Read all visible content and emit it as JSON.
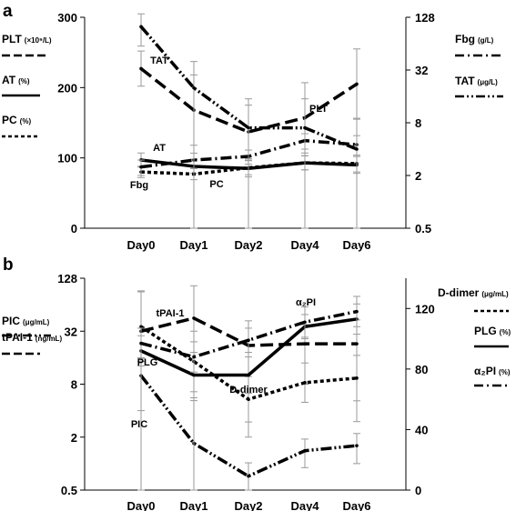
{
  "panels": [
    {
      "letter": "a",
      "left_axis": {
        "ticks": [
          "0",
          "100",
          "200",
          "300"
        ]
      },
      "right_axis": {
        "ticks": [
          "0.5",
          "2",
          "8",
          "32",
          "128"
        ]
      },
      "categories": [
        "Day0",
        "Day1",
        "Day2",
        "Day4",
        "Day6"
      ],
      "legend_left": [
        {
          "name": "PLT",
          "unit": "(×10⁹/L)"
        },
        {
          "name": "AT",
          "unit": "(%)"
        },
        {
          "name": "PC",
          "unit": "(%)"
        }
      ],
      "legend_right": [
        {
          "name": "Fbg",
          "unit": "(g/L)"
        },
        {
          "name": "TAT",
          "unit": "(μg/L)"
        }
      ],
      "annotations": [
        "TAT",
        "PLT",
        "AT",
        "Fbg",
        "PC"
      ]
    },
    {
      "letter": "b",
      "left_axis": {
        "ticks": [
          "0.5",
          "2",
          "8",
          "32",
          "128"
        ]
      },
      "right_axis": {
        "ticks": [
          "0",
          "40",
          "80",
          "120"
        ]
      },
      "categories": [
        "Day0",
        "Day1",
        "Day2",
        "Day4",
        "Day6"
      ],
      "legend_left": [
        {
          "name": "PIC",
          "unit": "(μg/mL)"
        },
        {
          "name": "tPAI-1",
          "unit": "(ng/mL)"
        }
      ],
      "legend_right": [
        {
          "name": "D-dimer",
          "unit": "(μg/mL)"
        },
        {
          "name": "PLG",
          "unit": "(%)"
        },
        {
          "name": "α₂PI",
          "unit": "(%)"
        }
      ],
      "annotations": [
        "tPAI-1",
        "α₂PI",
        "PLG",
        "D-dimer",
        "PIC"
      ]
    }
  ],
  "chart_data": [
    {
      "type": "line",
      "categories": [
        "Day0",
        "Day1",
        "Day2",
        "Day4",
        "Day6"
      ],
      "left_ylim": [
        0,
        300
      ],
      "right_ylim": [
        0.5,
        128
      ],
      "right_scale": "log2",
      "series": [
        {
          "name": "PLT",
          "axis": "left",
          "style": "long-dash",
          "values": [
            227,
            168,
            137,
            157,
            205
          ],
          "err": [
            25,
            50,
            38,
            50,
            50
          ]
        },
        {
          "name": "AT",
          "axis": "left",
          "style": "solid",
          "values": [
            97,
            88,
            85,
            93,
            90
          ],
          "err": [
            10,
            10,
            12,
            10,
            12
          ]
        },
        {
          "name": "PC",
          "axis": "left",
          "style": "short-dash",
          "values": [
            80,
            77,
            86,
            93,
            92
          ],
          "err": [
            8,
            8,
            10,
            10,
            12
          ]
        },
        {
          "name": "Fbg",
          "axis": "right",
          "style": "dash-dot",
          "values": [
            2.5,
            3.0,
            3.3,
            5.0,
            4.5
          ],
          "err": [
            0.5,
            0.6,
            0.6,
            1.0,
            1.2
          ]
        },
        {
          "name": "TAT",
          "axis": "right",
          "style": "dash-dot-dot",
          "values": [
            100,
            20,
            7,
            7,
            4
          ],
          "err": [
            40,
            20,
            8,
            8,
            5
          ]
        }
      ]
    },
    {
      "type": "line",
      "categories": [
        "Day0",
        "Day1",
        "Day2",
        "Day4",
        "Day6"
      ],
      "left_ylim": [
        0.5,
        128
      ],
      "left_scale": "log2",
      "right_ylim": [
        0,
        140
      ],
      "series": [
        {
          "name": "PIC",
          "axis": "left",
          "style": "dash-dot-dot",
          "values": [
            10,
            1.7,
            0.72,
            1.4,
            1.6
          ],
          "err": [
            6,
            3.5,
            0.3,
            0.5,
            0.6
          ]
        },
        {
          "name": "tPAI-1",
          "axis": "left",
          "style": "long-dash",
          "values": [
            32,
            45,
            22,
            23,
            23
          ],
          "err": [
            60,
            60,
            20,
            15,
            20
          ]
        },
        {
          "name": "D-dimer",
          "axis": "right",
          "style": "short-dash",
          "values": [
            108,
            85,
            60,
            71,
            74
          ],
          "err": [
            23,
            20,
            15,
            13,
            15
          ]
        },
        {
          "name": "PLG",
          "axis": "right",
          "style": "solid",
          "values": [
            92,
            76,
            76,
            108,
            113
          ],
          "err": [
            10,
            15,
            12,
            8,
            10
          ]
        },
        {
          "name": "α₂PI",
          "axis": "right",
          "style": "dash-dot",
          "values": [
            97,
            88,
            99,
            111,
            118
          ],
          "err": [
            10,
            10,
            8,
            10,
            10
          ]
        }
      ]
    }
  ]
}
